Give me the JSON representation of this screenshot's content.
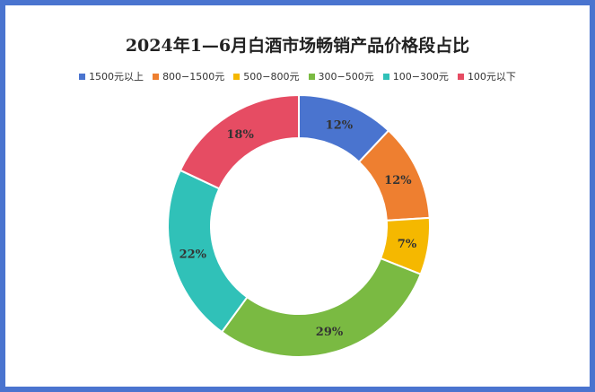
{
  "chart_data": {
    "type": "pie",
    "title": "2024年1—6月白酒市场畅销产品价格段占比",
    "categories": [
      "1500元以上",
      "800—1500元",
      "500—800元",
      "300—500元",
      "100—300元",
      "100元以下"
    ],
    "legend_labels": [
      "1500元以上",
      "800−1500元",
      "500−800元",
      "300−500元",
      "100−300元",
      "100元以下"
    ],
    "values": [
      12,
      12,
      7,
      29,
      22,
      18
    ],
    "value_labels": [
      "12%",
      "12%",
      "7%",
      "29%",
      "22%",
      "18%"
    ],
    "colors": [
      "#4a74cf",
      "#ee7f30",
      "#f5b800",
      "#7aba42",
      "#30c1b8",
      "#e64c63"
    ],
    "legend_position": "top"
  }
}
